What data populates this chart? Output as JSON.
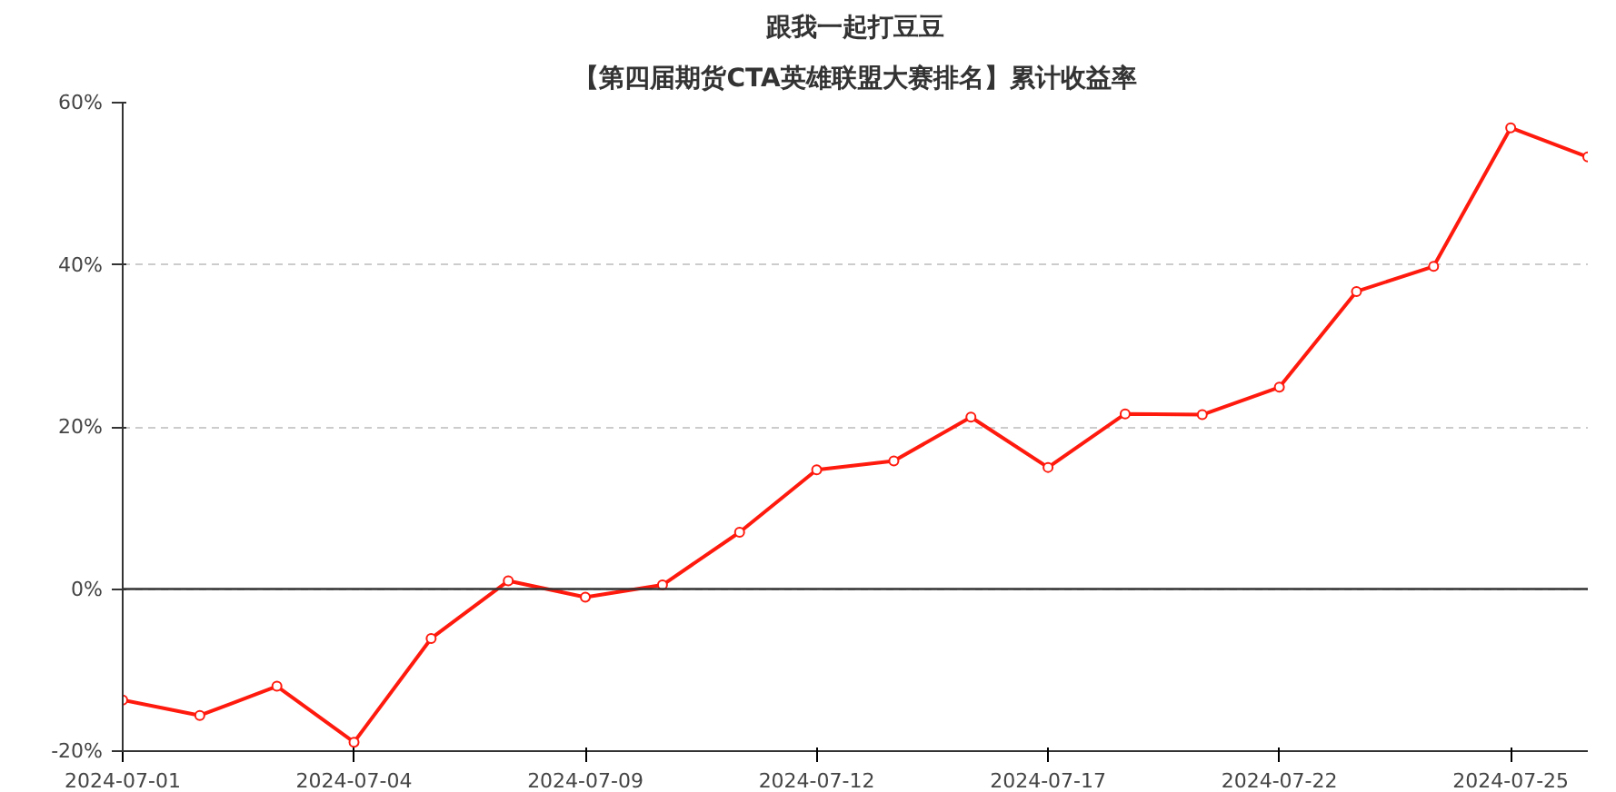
{
  "chart_data": {
    "type": "line",
    "title": "跟我一起打豆豆",
    "subtitle": "【第四届期货CTA英雄联盟大赛排名】累计收益率",
    "categories": [
      "2024-07-01",
      null,
      null,
      "2024-07-04",
      null,
      null,
      "2024-07-09",
      null,
      null,
      "2024-07-12",
      null,
      null,
      "2024-07-17",
      null,
      null,
      "2024-07-22",
      null,
      null,
      "2024-07-25",
      null
    ],
    "series": [
      {
        "color": "#ff1a0e",
        "values": [
          -13.7,
          -15.6,
          -12.0,
          -18.9,
          -6.1,
          1.0,
          -1.0,
          0.5,
          7.0,
          14.7,
          15.8,
          21.2,
          15.0,
          21.6,
          21.5,
          24.9,
          36.7,
          39.8,
          56.9,
          53.3
        ]
      }
    ],
    "ylim": [
      -20,
      60
    ],
    "yticks": [
      {
        "value": -20,
        "label": "-20%"
      },
      {
        "value": 0,
        "label": "0%"
      },
      {
        "value": 20,
        "label": "20%"
      },
      {
        "value": 40,
        "label": "40%"
      },
      {
        "value": 60,
        "label": "60%"
      }
    ],
    "ref_lines": [
      {
        "axis": "y",
        "value": 0,
        "color": "#333333",
        "line_style": "solid"
      }
    ],
    "grid": "y",
    "marker": "circle",
    "line_style": "solid"
  }
}
